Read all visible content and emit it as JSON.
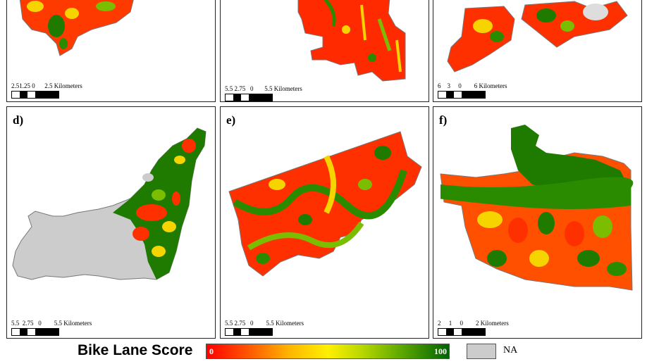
{
  "panels": [
    {
      "id": "a",
      "label": "",
      "scale": {
        "ticks": [
          "2.5",
          "1.25",
          "0",
          "2.5 Kilometers"
        ]
      }
    },
    {
      "id": "b",
      "label": "",
      "scale": {
        "ticks": [
          "5.5",
          "2.75",
          "0",
          "5.5 Kilometers"
        ]
      }
    },
    {
      "id": "c",
      "label": "",
      "scale": {
        "ticks": [
          "6",
          "3",
          "0",
          "6 Kilometers"
        ]
      }
    },
    {
      "id": "d",
      "label": "d)",
      "scale": {
        "ticks": [
          "5.5",
          "2.75",
          "0",
          "5.5 Kilometers"
        ]
      }
    },
    {
      "id": "e",
      "label": "e)",
      "scale": {
        "ticks": [
          "5.5",
          "2.75",
          "0",
          "5.5 Kilometers"
        ]
      }
    },
    {
      "id": "f",
      "label": "f)",
      "scale": {
        "ticks": [
          "2",
          "1",
          "0",
          "2 Kilometers"
        ]
      }
    }
  ],
  "legend": {
    "title": "Bike Lane Score",
    "min": "0",
    "max": "100",
    "na_label": "NA",
    "colors": {
      "low": "#ff0000",
      "mid": "#fff000",
      "high": "#006400",
      "na": "#cccccc"
    }
  }
}
